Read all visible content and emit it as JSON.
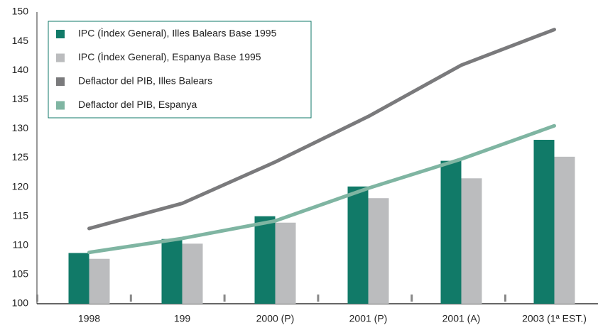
{
  "chart_data": {
    "type": "bar",
    "categories": [
      "1998",
      "199",
      "2000 (P)",
      "2001 (P)",
      "2001 (A)",
      "2003 (1ª EST.)"
    ],
    "series": [
      {
        "name": "IPC (Ìndex General), Illes Balears Base 1995",
        "type": "bar",
        "color": "#117a68",
        "values": [
          108.7,
          111.1,
          115.0,
          120.1,
          124.5,
          128.1
        ]
      },
      {
        "name": "IPC (Ìndex  General), Espanya Base 1995",
        "type": "bar",
        "color": "#bbbcbe",
        "values": [
          107.7,
          110.3,
          113.9,
          118.1,
          121.5,
          125.2
        ]
      },
      {
        "name": "Deflactor del PIB, Illes Balears",
        "type": "line",
        "color": "#7a7a7c",
        "values": [
          112.9,
          117.2,
          124.3,
          132.1,
          140.9,
          147.0
        ]
      },
      {
        "name": "Deflactor del PIB, Espanya",
        "type": "line",
        "color": "#7fb5a2",
        "values": [
          108.8,
          111.2,
          114.2,
          119.8,
          124.8,
          130.5
        ]
      }
    ],
    "ylim": [
      100,
      150
    ],
    "yticks": [
      100,
      105,
      110,
      115,
      120,
      125,
      130,
      135,
      140,
      145,
      150
    ],
    "legend": "top-left"
  }
}
